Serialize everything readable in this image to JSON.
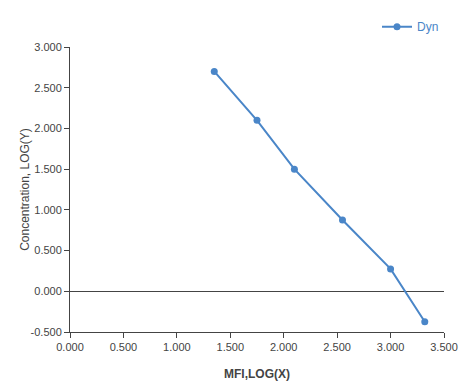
{
  "chart_data": {
    "type": "line",
    "x": [
      1.35,
      1.75,
      2.1,
      2.55,
      3.0,
      3.32
    ],
    "series": [
      {
        "name": "Dyn",
        "color": "#4a86c8",
        "marker": "circle",
        "line_style": "solid",
        "values": [
          2.7,
          2.1,
          1.5,
          0.875,
          0.275,
          -0.375
        ]
      }
    ],
    "xlabel": "MFI,LOG(X)",
    "ylabel": "Concentration, LOG(Y)",
    "xlim": [
      0.0,
      3.5
    ],
    "ylim": [
      -0.5,
      3.0
    ],
    "xticks": [
      {
        "value": 0.0,
        "label": "0.000"
      },
      {
        "value": 0.5,
        "label": "0.500"
      },
      {
        "value": 1.0,
        "label": "1.000"
      },
      {
        "value": 1.5,
        "label": "1.500"
      },
      {
        "value": 2.0,
        "label": "2.000"
      },
      {
        "value": 2.5,
        "label": "2.500"
      },
      {
        "value": 3.0,
        "label": "3.000"
      },
      {
        "value": 3.5,
        "label": "3.500"
      }
    ],
    "yticks": [
      {
        "value": -0.5,
        "label": "-0.500"
      },
      {
        "value": 0.0,
        "label": "0.000"
      },
      {
        "value": 0.5,
        "label": "0.500"
      },
      {
        "value": 1.0,
        "label": "1.000"
      },
      {
        "value": 1.5,
        "label": "1.500"
      },
      {
        "value": 2.0,
        "label": "2.000"
      },
      {
        "value": 2.5,
        "label": "2.500"
      },
      {
        "value": 3.0,
        "label": "3.000"
      }
    ],
    "grid": false,
    "legend": "upper right"
  }
}
